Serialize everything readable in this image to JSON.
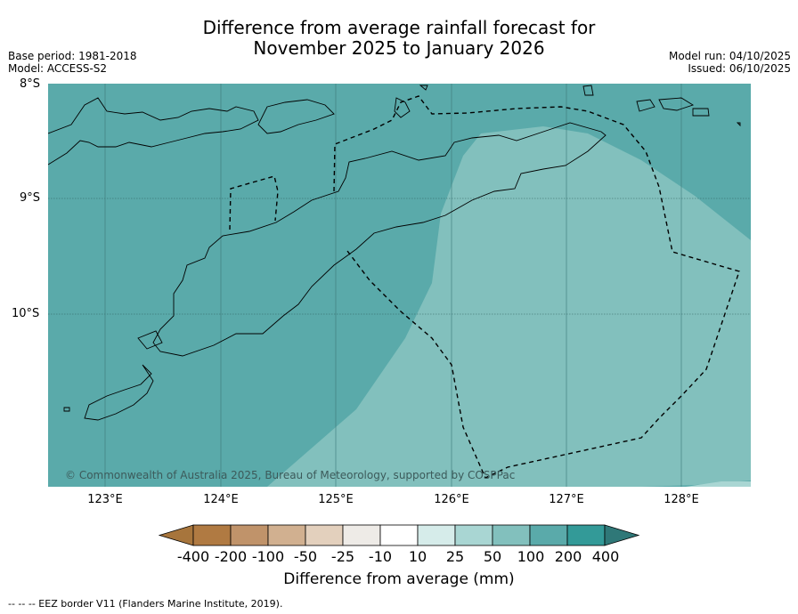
{
  "title": {
    "line1": "Difference from average rainfall forecast for",
    "line2": "November 2025 to January 2026"
  },
  "meta_left": {
    "base_period": "Base period: 1981-2018",
    "model": "Model: ACCESS-S2"
  },
  "meta_right": {
    "model_run": "Model run: 04/10/2025",
    "issued": "Issued: 06/10/2025"
  },
  "map": {
    "latitude_labels": [
      "8°S",
      "9°S",
      "10°S"
    ],
    "longitude_labels": [
      "123°E",
      "124°E",
      "125°E",
      "126°E",
      "127°E",
      "128°E"
    ],
    "copyright": "© Commonwealth of Australia 2025, Bureau of Meteorology, supported by COSPPac",
    "category_dominant": "100",
    "category_secondary": "50"
  },
  "colorbar": {
    "labels": [
      "-400",
      "-200",
      "-100",
      "-50",
      "-25",
      "-10",
      "10",
      "25",
      "50",
      "100",
      "200",
      "400"
    ],
    "colors": [
      "#a7753c",
      "#b07a42",
      "#c0936a",
      "#d1b090",
      "#e3d0bd",
      "#eeebe7",
      "#ffffff",
      "#d6ecea",
      "#a9d6d3",
      "#82c0bd",
      "#5aaaaa",
      "#339a98",
      "#2f7878"
    ],
    "title": "Difference from average (mm)"
  },
  "footnote": "--  --  -- EEZ border V11 (Flanders Marine Institute, 2019)."
}
